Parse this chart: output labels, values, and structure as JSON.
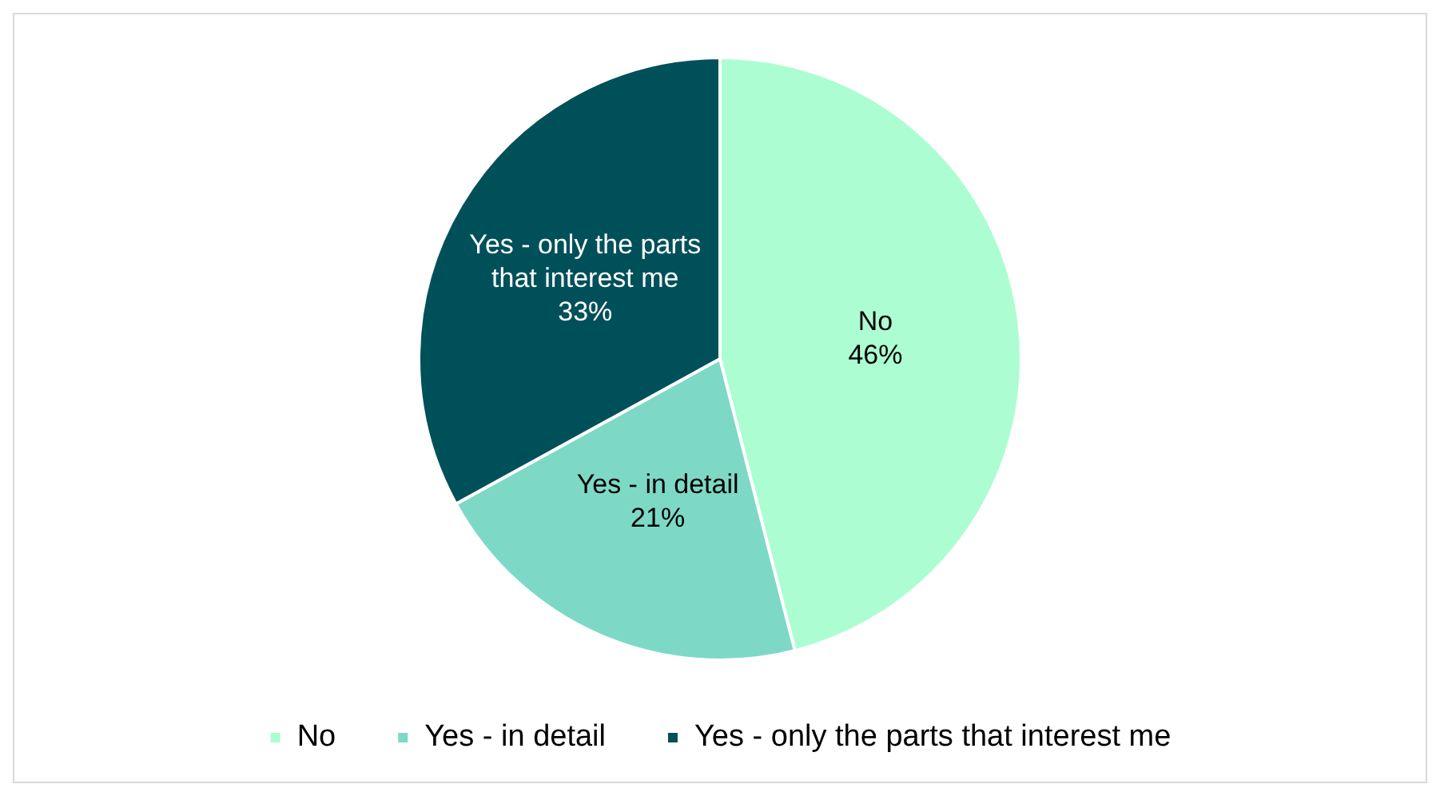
{
  "chart_data": {
    "type": "pie",
    "categories": [
      "No",
      "Yes - in detail",
      "Yes - only the parts that interest me"
    ],
    "values": [
      46,
      21,
      33
    ],
    "colors": [
      "#adfdd2",
      "#7dd9c6",
      "#00505a"
    ],
    "legend": "bottom",
    "value_labels": [
      "46%",
      "21%",
      "33%"
    ]
  }
}
